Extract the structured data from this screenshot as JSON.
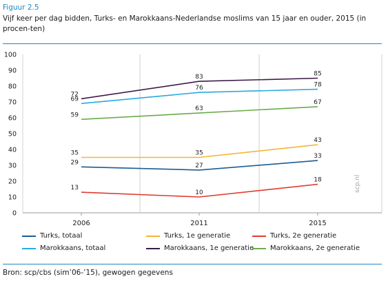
{
  "figure_label": "Figuur 2.5",
  "title": "Vijf keer per dag bidden, Turks- en Marokkaans-Nederlandse moslims van 15 jaar en ouder, 2015 (in procen-ten)",
  "source": "Bron: scp/cbs (sim’06-’15), gewogen gegevens",
  "watermark": "scp.nl",
  "chart_data": {
    "type": "line",
    "title": "Vijf keer per dag bidden, Turks- en Marokkaans-Nederlandse moslims van 15 jaar en ouder, 2015 (in procen-ten)",
    "xlabel": "",
    "ylabel": "",
    "categories": [
      "2006",
      "2011",
      "2015"
    ],
    "ylim": [
      0,
      100
    ],
    "yticks": [
      0,
      10,
      20,
      30,
      40,
      50,
      60,
      70,
      80,
      90,
      100
    ],
    "grid": "vertical lines at categories; y baseline",
    "legend_position": "bottom",
    "series": [
      {
        "name": "Turks, totaal",
        "color": "#1a5c94",
        "values": [
          29,
          27,
          33
        ]
      },
      {
        "name": "Turks, 1e generatie",
        "color": "#f3b534",
        "values": [
          35,
          35,
          43
        ]
      },
      {
        "name": "Turks, 2e generatie",
        "color": "#e03a2f",
        "values": [
          13,
          10,
          18
        ]
      },
      {
        "name": "Marokkaans, totaal",
        "color": "#27a9e1",
        "values": [
          69,
          76,
          78
        ]
      },
      {
        "name": "Marokkaans, 1e generatie",
        "color": "#3b1a45",
        "values": [
          72,
          83,
          85
        ]
      },
      {
        "name": "Marokkaans, 2e generatie",
        "color": "#6aab4a",
        "values": [
          59,
          63,
          67
        ]
      }
    ]
  }
}
